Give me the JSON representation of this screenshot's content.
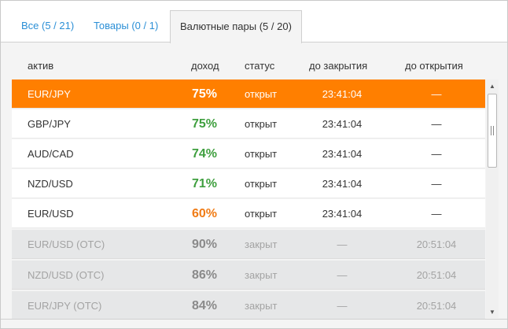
{
  "tabs": [
    {
      "label": "Все (5 / 21)",
      "active": false
    },
    {
      "label": "Товары (0 / 1)",
      "active": false
    },
    {
      "label": "Валютные пары (5 / 20)",
      "active": true
    }
  ],
  "columns": {
    "asset": "актив",
    "income": "доход",
    "status": "статус",
    "until_close": "до закрытия",
    "until_open": "до открытия"
  },
  "rows": [
    {
      "asset": "EUR/JPY",
      "income": "75%",
      "status": "открыт",
      "until_close": "23:41:04",
      "until_open": "—",
      "state": "selected"
    },
    {
      "asset": "GBP/JPY",
      "income": "75%",
      "status": "открыт",
      "until_close": "23:41:04",
      "until_open": "—",
      "state": "open"
    },
    {
      "asset": "AUD/CAD",
      "income": "74%",
      "status": "открыт",
      "until_close": "23:41:04",
      "until_open": "—",
      "state": "open"
    },
    {
      "asset": "NZD/USD",
      "income": "71%",
      "status": "открыт",
      "until_close": "23:41:04",
      "until_open": "—",
      "state": "open"
    },
    {
      "asset": "EUR/USD",
      "income": "60%",
      "status": "открыт",
      "until_close": "23:41:04",
      "until_open": "—",
      "state": "open"
    },
    {
      "asset": "EUR/USD (OTC)",
      "income": "90%",
      "status": "закрыт",
      "until_close": "—",
      "until_open": "20:51:04",
      "state": "closed"
    },
    {
      "asset": "NZD/USD (OTC)",
      "income": "86%",
      "status": "закрыт",
      "until_close": "—",
      "until_open": "20:51:04",
      "state": "closed"
    },
    {
      "asset": "EUR/JPY (OTC)",
      "income": "84%",
      "status": "закрыт",
      "until_close": "—",
      "until_open": "20:51:04",
      "state": "closed"
    }
  ],
  "colors": {
    "selected_row": "#ff7f00",
    "income_high": "#3f9f3f",
    "income_low": "#f07c16",
    "tab_link": "#2b8fd6",
    "closed_row": "#e6e7e8"
  },
  "icons": {
    "scroll_up": "▲",
    "scroll_down": "▼"
  }
}
